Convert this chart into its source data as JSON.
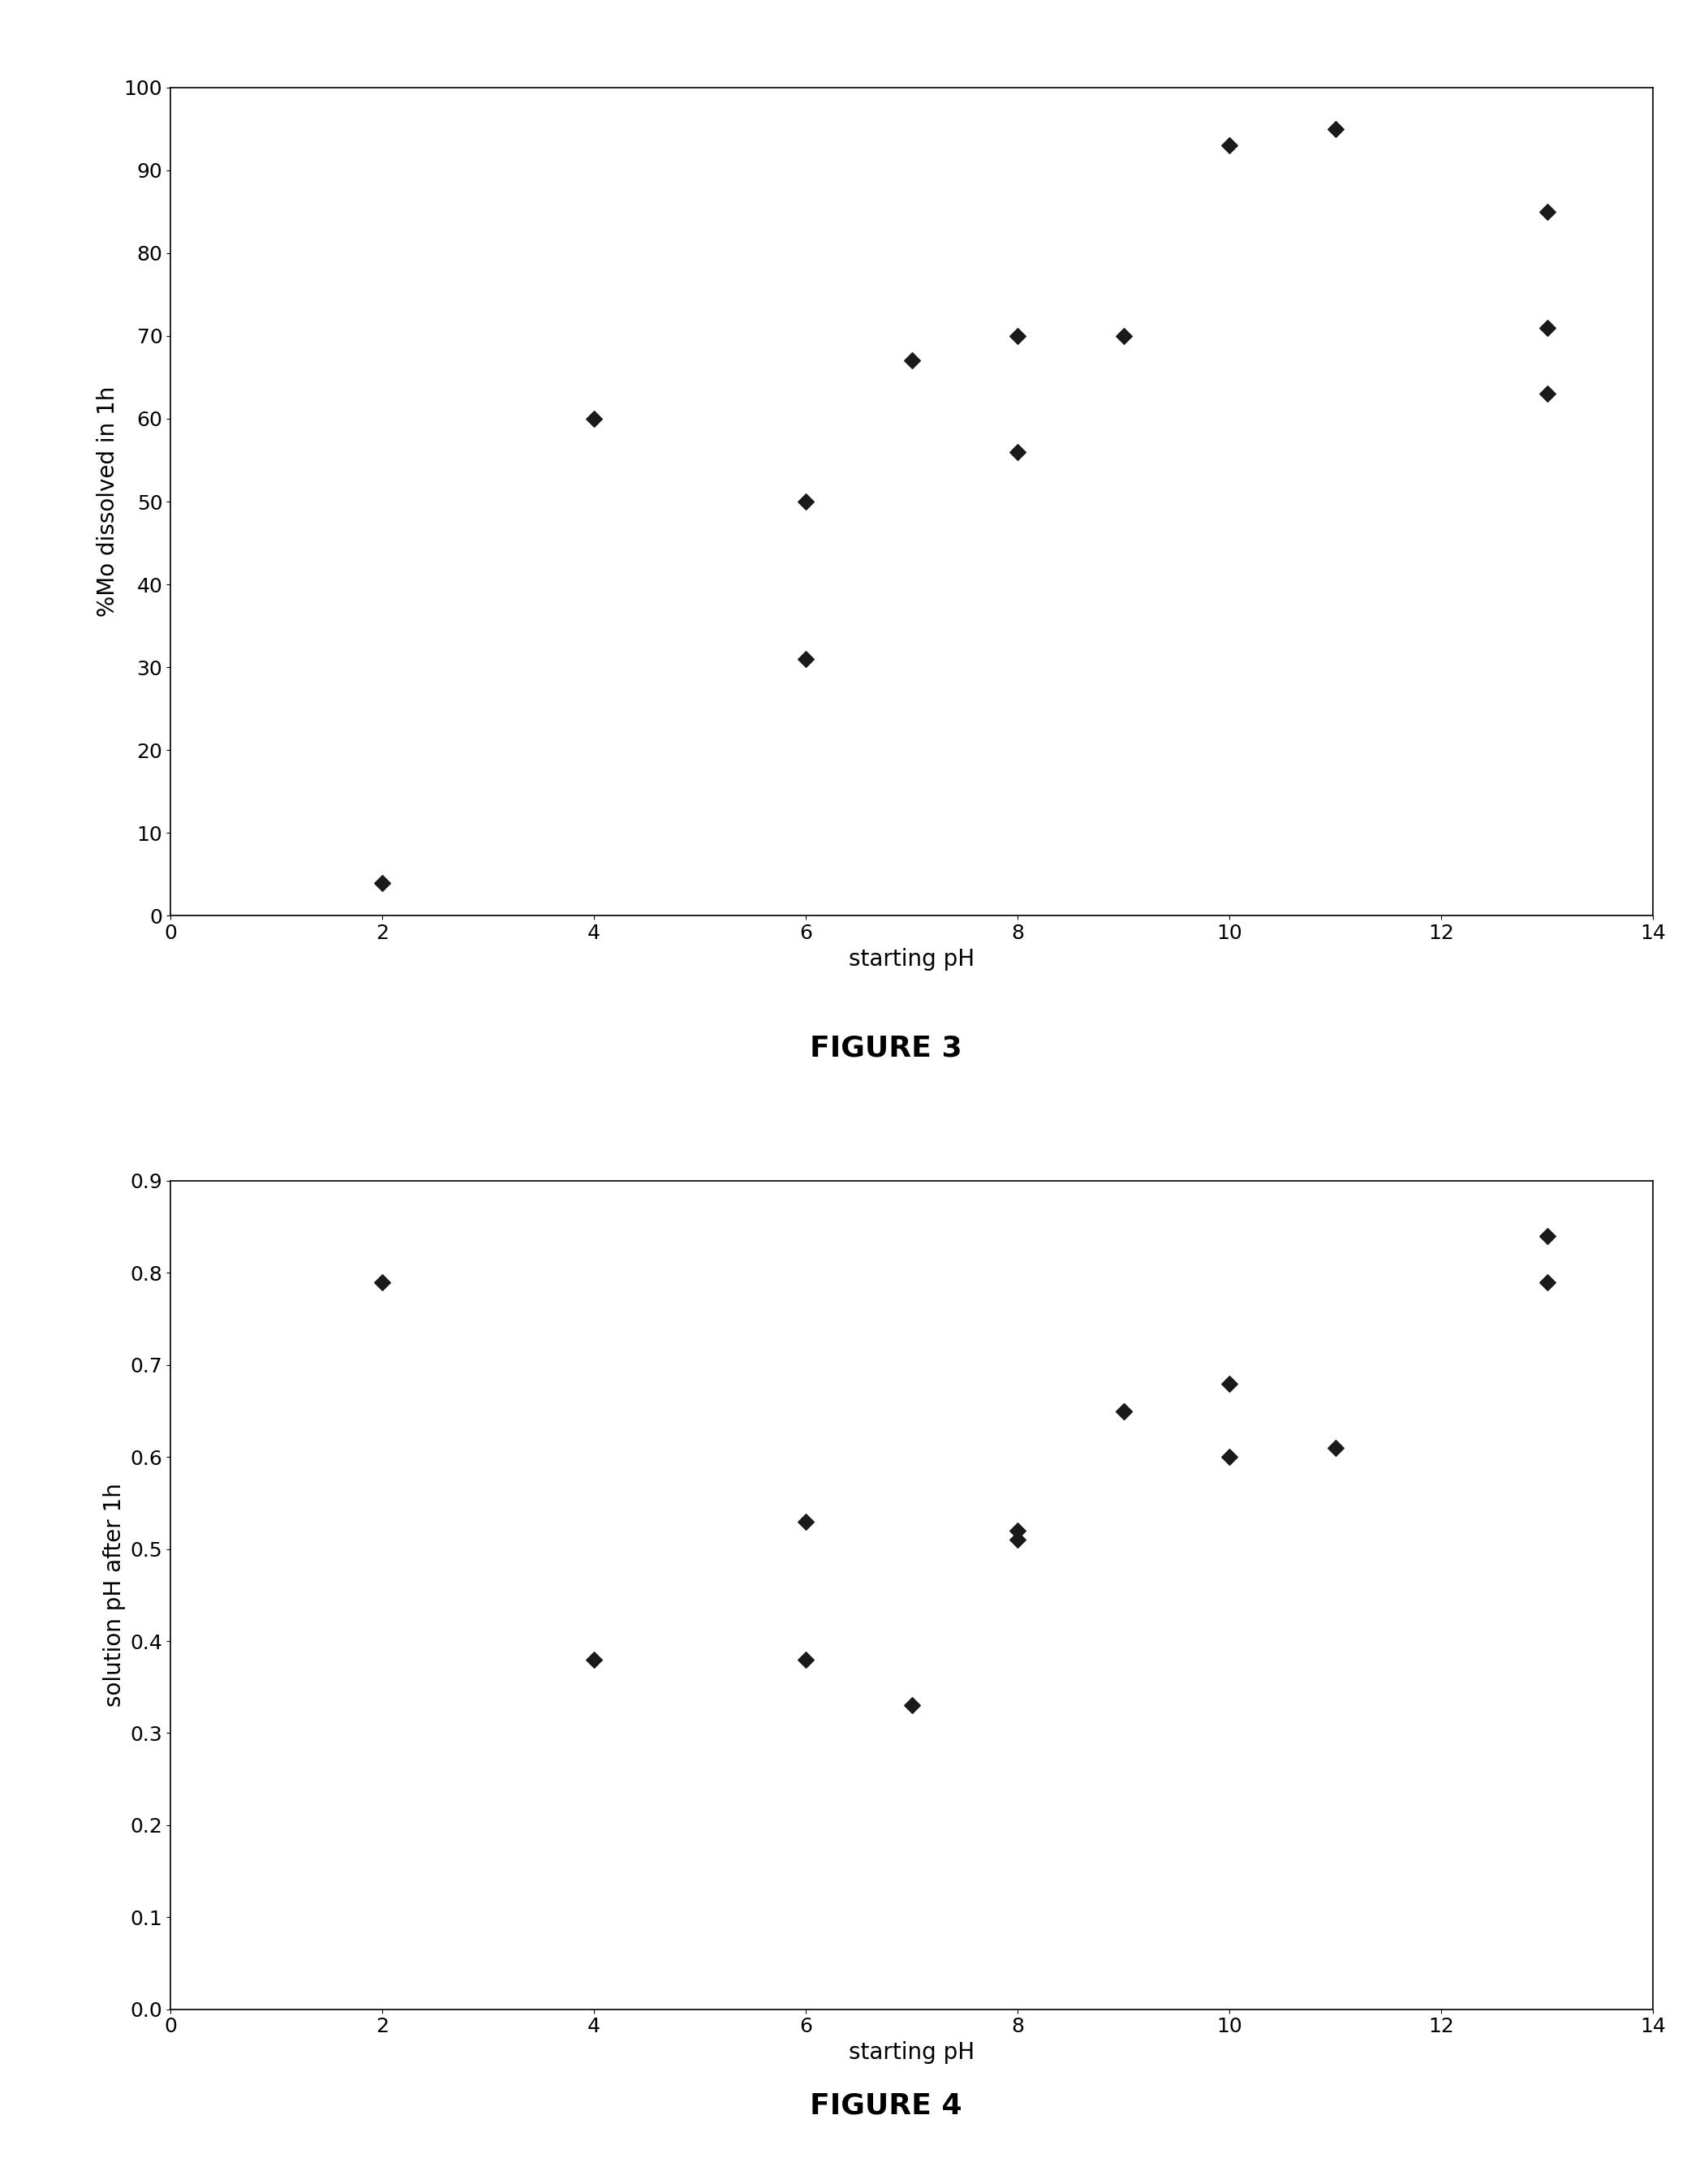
{
  "fig3": {
    "x": [
      2,
      4,
      6,
      6,
      7,
      8,
      8,
      9,
      10,
      11,
      13,
      13,
      13
    ],
    "y": [
      4,
      60,
      31,
      50,
      67,
      56,
      70,
      70,
      93,
      95,
      63,
      85,
      71
    ],
    "xlabel": "starting pH",
    "ylabel": "%Mo dissolved in 1h",
    "xlim": [
      0,
      14
    ],
    "ylim": [
      0,
      100
    ],
    "xticks": [
      0,
      2,
      4,
      6,
      8,
      10,
      12,
      14
    ],
    "yticks": [
      0,
      10,
      20,
      30,
      40,
      50,
      60,
      70,
      80,
      90,
      100
    ],
    "title": "FIGURE 3"
  },
  "fig4": {
    "x": [
      2,
      4,
      6,
      6,
      7,
      8,
      8,
      9,
      9,
      10,
      10,
      11,
      13,
      13
    ],
    "y": [
      0.79,
      0.38,
      0.38,
      0.53,
      0.33,
      0.52,
      0.51,
      0.65,
      0.65,
      0.68,
      0.6,
      0.61,
      0.84,
      0.79
    ],
    "xlabel": "starting pH",
    "ylabel": "solution pH after 1h",
    "xlim": [
      0,
      14
    ],
    "ylim": [
      0,
      0.9
    ],
    "xticks": [
      0,
      2,
      4,
      6,
      8,
      10,
      12,
      14
    ],
    "yticks": [
      0.0,
      0.1,
      0.2,
      0.3,
      0.4,
      0.5,
      0.6,
      0.7,
      0.8,
      0.9
    ],
    "title": "FIGURE 4"
  },
  "marker_color": "#1a1a1a",
  "marker_size": 100,
  "marker_style": "D",
  "background_color": "#ffffff",
  "box_color": "#000000",
  "font_size_label": 20,
  "font_size_title": 26,
  "font_size_tick": 18
}
